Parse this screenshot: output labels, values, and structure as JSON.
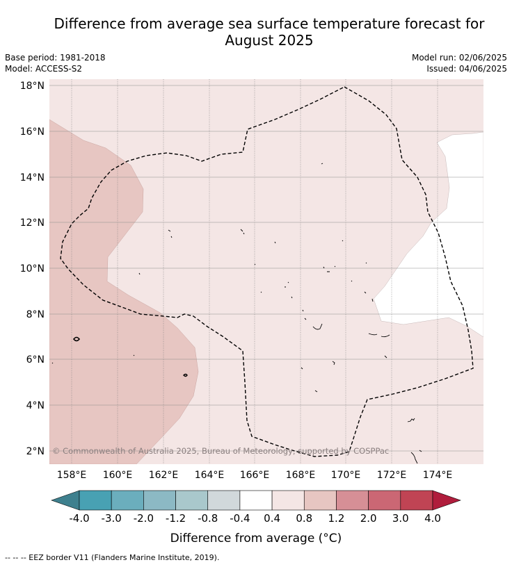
{
  "title": "Difference from average sea surface temperature forecast for August 2025",
  "meta": {
    "base_period": "Base period: 1981-2018",
    "model": "Model: ACCESS-S2",
    "model_run": "Model run: 02/06/2025",
    "issued": "Issued: 04/06/2025"
  },
  "map": {
    "lat_labels": [
      "18°N",
      "16°N",
      "14°N",
      "12°N",
      "10°N",
      "8°N",
      "6°N",
      "4°N",
      "2°N"
    ],
    "lon_labels": [
      "158°E",
      "160°E",
      "162°E",
      "164°E",
      "166°E",
      "168°E",
      "170°E",
      "172°E",
      "174°E"
    ],
    "extent": {
      "lon_min": 157,
      "lon_max": 176,
      "lat_min": 1.4,
      "lat_max": 18.2
    },
    "copyright": "© Commonwealth of Australia 2025, Bureau of Meteorology, supported by COSPPac",
    "anomaly_regions": [
      {
        "category": "0.8 to 1.2",
        "color": "#e7c6c2"
      },
      {
        "category": "0.4 to 0.8",
        "color": "#f4e6e5"
      },
      {
        "category": "-0.4 to 0.4",
        "color": "#ffffff"
      }
    ]
  },
  "colorbar": {
    "labels": [
      "-4.0",
      "-3.0",
      "-2.0",
      "-1.2",
      "-0.8",
      "-0.4",
      "0.4",
      "0.8",
      "1.2",
      "2.0",
      "3.0",
      "4.0"
    ],
    "under_color": "#3e808e",
    "over_color": "#b01d3c",
    "colors": [
      "#48a1b3",
      "#6baebd",
      "#8cb9c4",
      "#a9c8cc",
      "#d1d8db",
      "#ffffff",
      "#f4e6e5",
      "#e7c6c2",
      "#d68f96",
      "#cb6774",
      "#c04454"
    ],
    "label": "Difference from average (°C)"
  },
  "footer": "--  --  -- EEZ border V11 (Flanders Marine Institute, 2019)."
}
